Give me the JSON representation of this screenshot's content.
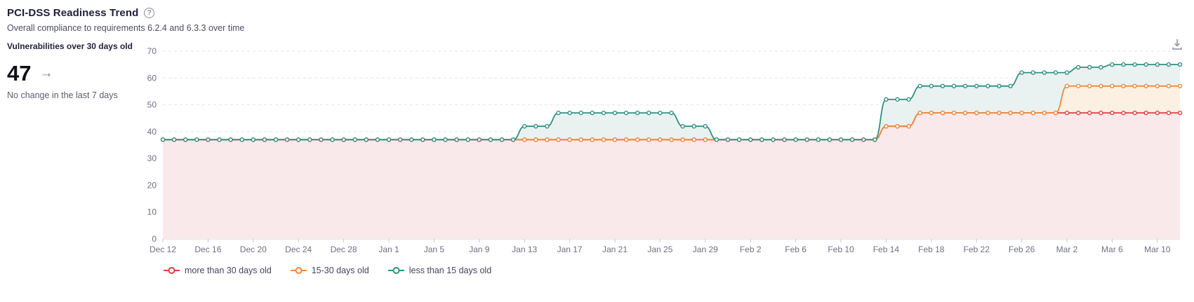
{
  "header": {
    "title": "PCI-DSS Readiness Trend",
    "help_icon": "question-circle-icon",
    "subtitle": "Overall compliance to requirements 6.2.4 and 6.3.3 over time"
  },
  "stat_panel": {
    "label": "Vulnerabilities over 30 days old",
    "value": "47",
    "trend_arrow": "→",
    "trend_arrow_meaning": "no-change-right-arrow",
    "trend_text": "No change in the last 7 days"
  },
  "toolbar": {
    "download_icon": "download-icon"
  },
  "chart_data": {
    "type": "line",
    "title": "PCI-DSS Readiness Trend",
    "xlabel": "",
    "ylabel": "",
    "ylim": [
      0,
      70
    ],
    "ytick_step": 10,
    "grid": "dashed-horizontal",
    "smooth": true,
    "markers": "hollow-circle",
    "area_fill": true,
    "legend_position": "bottom-left",
    "x_label_every": 4,
    "x": [
      "Dec 12",
      "Dec 13",
      "Dec 14",
      "Dec 15",
      "Dec 16",
      "Dec 17",
      "Dec 18",
      "Dec 19",
      "Dec 20",
      "Dec 21",
      "Dec 22",
      "Dec 23",
      "Dec 24",
      "Dec 25",
      "Dec 26",
      "Dec 27",
      "Dec 28",
      "Dec 29",
      "Dec 30",
      "Dec 31",
      "Jan 1",
      "Jan 2",
      "Jan 3",
      "Jan 4",
      "Jan 5",
      "Jan 6",
      "Jan 7",
      "Jan 8",
      "Jan 9",
      "Jan 10",
      "Jan 11",
      "Jan 12",
      "Jan 13",
      "Jan 14",
      "Jan 15",
      "Jan 16",
      "Jan 17",
      "Jan 18",
      "Jan 19",
      "Jan 20",
      "Jan 21",
      "Jan 22",
      "Jan 23",
      "Jan 24",
      "Jan 25",
      "Jan 26",
      "Jan 27",
      "Jan 28",
      "Jan 29",
      "Jan 30",
      "Jan 31",
      "Feb 1",
      "Feb 2",
      "Feb 3",
      "Feb 4",
      "Feb 5",
      "Feb 6",
      "Feb 7",
      "Feb 8",
      "Feb 9",
      "Feb 10",
      "Feb 11",
      "Feb 12",
      "Feb 13",
      "Feb 14",
      "Feb 15",
      "Feb 16",
      "Feb 17",
      "Feb 18",
      "Feb 19",
      "Feb 20",
      "Feb 21",
      "Feb 22",
      "Feb 23",
      "Feb 24",
      "Feb 25",
      "Feb 26",
      "Feb 27",
      "Feb 28",
      "Mar 1",
      "Mar 2",
      "Mar 3",
      "Mar 4",
      "Mar 5",
      "Mar 6",
      "Mar 7",
      "Mar 8",
      "Mar 9",
      "Mar 10",
      "Mar 11",
      "Mar 12"
    ],
    "series": [
      {
        "name": "more than 30 days old",
        "color": "#e13c44",
        "fill": "#fae9ea",
        "values": [
          37,
          37,
          37,
          37,
          37,
          37,
          37,
          37,
          37,
          37,
          37,
          37,
          37,
          37,
          37,
          37,
          37,
          37,
          37,
          37,
          37,
          37,
          37,
          37,
          37,
          37,
          37,
          37,
          37,
          37,
          37,
          37,
          37,
          37,
          37,
          37,
          37,
          37,
          37,
          37,
          37,
          37,
          37,
          37,
          37,
          37,
          37,
          37,
          37,
          37,
          37,
          37,
          37,
          37,
          37,
          37,
          37,
          37,
          37,
          37,
          37,
          37,
          37,
          37,
          42,
          42,
          42,
          47,
          47,
          47,
          47,
          47,
          47,
          47,
          47,
          47,
          47,
          47,
          47,
          47,
          47,
          47,
          47,
          47,
          47,
          47,
          47,
          47,
          47,
          47,
          47
        ]
      },
      {
        "name": "15-30 days old",
        "color": "#ee8a3a",
        "fill": "#fcf0e2",
        "values": [
          37,
          37,
          37,
          37,
          37,
          37,
          37,
          37,
          37,
          37,
          37,
          37,
          37,
          37,
          37,
          37,
          37,
          37,
          37,
          37,
          37,
          37,
          37,
          37,
          37,
          37,
          37,
          37,
          37,
          37,
          37,
          37,
          37,
          37,
          37,
          37,
          37,
          37,
          37,
          37,
          37,
          37,
          37,
          37,
          37,
          37,
          37,
          37,
          37,
          37,
          37,
          37,
          37,
          37,
          37,
          37,
          37,
          37,
          37,
          37,
          37,
          37,
          37,
          37,
          42,
          42,
          42,
          47,
          47,
          47,
          47,
          47,
          47,
          47,
          47,
          47,
          47,
          47,
          47,
          47,
          57,
          57,
          57,
          57,
          57,
          57,
          57,
          57,
          57,
          57,
          57
        ]
      },
      {
        "name": "less than 15 days old",
        "color": "#2f9183",
        "fill": "#e9f2f0",
        "values": [
          37,
          37,
          37,
          37,
          37,
          37,
          37,
          37,
          37,
          37,
          37,
          37,
          37,
          37,
          37,
          37,
          37,
          37,
          37,
          37,
          37,
          37,
          37,
          37,
          37,
          37,
          37,
          37,
          37,
          37,
          37,
          37,
          42,
          42,
          42,
          47,
          47,
          47,
          47,
          47,
          47,
          47,
          47,
          47,
          47,
          47,
          42,
          42,
          42,
          37,
          37,
          37,
          37,
          37,
          37,
          37,
          37,
          37,
          37,
          37,
          37,
          37,
          37,
          37,
          52,
          52,
          52,
          57,
          57,
          57,
          57,
          57,
          57,
          57,
          57,
          57,
          62,
          62,
          62,
          62,
          62,
          64,
          64,
          64,
          65,
          65,
          65,
          65,
          65,
          65,
          65
        ]
      }
    ]
  }
}
